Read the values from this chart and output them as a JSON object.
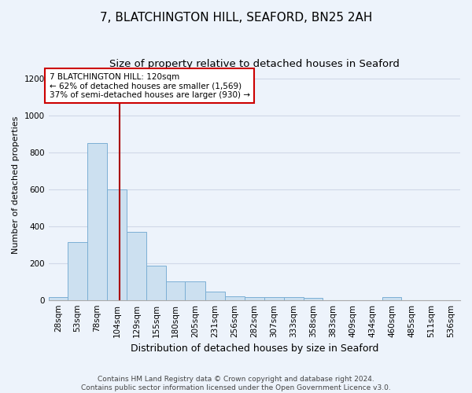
{
  "title1": "7, BLATCHINGTON HILL, SEAFORD, BN25 2AH",
  "title2": "Size of property relative to detached houses in Seaford",
  "xlabel": "Distribution of detached houses by size in Seaford",
  "ylabel": "Number of detached properties",
  "bar_edges": [
    28,
    53,
    78,
    104,
    129,
    155,
    180,
    205,
    231,
    256,
    282,
    307,
    333,
    358,
    383,
    409,
    434,
    460,
    485,
    511,
    536
  ],
  "bar_heights": [
    15,
    315,
    850,
    600,
    370,
    185,
    100,
    100,
    45,
    20,
    15,
    15,
    15,
    10,
    0,
    0,
    0,
    15,
    0,
    0,
    0
  ],
  "bar_color": "#cce0f0",
  "bar_edgecolor": "#7bafd4",
  "bar_linewidth": 0.7,
  "background_color": "#edf3fb",
  "grid_color": "#d0d8e8",
  "red_line_x": 120,
  "red_line_color": "#aa0000",
  "annotation_text": "7 BLATCHINGTON HILL: 120sqm\n← 62% of detached houses are smaller (1,569)\n37% of semi-detached houses are larger (930) →",
  "annotation_box_color": "#ffffff",
  "annotation_border_color": "#cc0000",
  "ylim": [
    0,
    1250
  ],
  "yticks": [
    0,
    200,
    400,
    600,
    800,
    1000,
    1200
  ],
  "footer_text": "Contains HM Land Registry data © Crown copyright and database right 2024.\nContains public sector information licensed under the Open Government Licence v3.0.",
  "title1_fontsize": 11,
  "title2_fontsize": 9.5,
  "xlabel_fontsize": 9,
  "ylabel_fontsize": 8,
  "tick_fontsize": 7.5,
  "annotation_fontsize": 7.5,
  "footer_fontsize": 6.5
}
